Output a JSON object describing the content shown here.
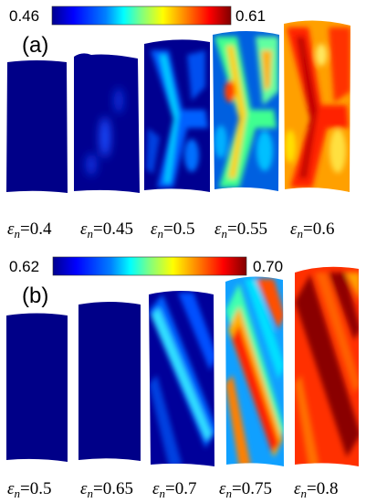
{
  "panels": [
    {
      "label": "(a)",
      "colorbar": {
        "min_label": "0.46",
        "max_label": "0.61",
        "colors": [
          "#00008f",
          "#0000ff",
          "#0080ff",
          "#00ffff",
          "#80ff80",
          "#ffff00",
          "#ff8000",
          "#ff0000",
          "#800000"
        ]
      },
      "strain_symbol": "ε",
      "strain_subscript": "n",
      "samples": [
        {
          "value": "=0.4",
          "state": 0.0
        },
        {
          "value": "=0.45",
          "state": 0.12
        },
        {
          "value": "=0.5",
          "state": 0.3
        },
        {
          "value": "=0.55",
          "state": 0.55
        },
        {
          "value": "=0.6",
          "state": 0.8
        }
      ]
    },
    {
      "label": "(b)",
      "colorbar": {
        "min_label": "0.62",
        "max_label": "0.70",
        "colors": [
          "#00008f",
          "#0000ff",
          "#0080ff",
          "#00ffff",
          "#80ff80",
          "#ffff00",
          "#ff8000",
          "#ff0000",
          "#800000"
        ]
      },
      "strain_symbol": "ε",
      "strain_subscript": "n",
      "samples": [
        {
          "value": "=0.5",
          "state": 0.0
        },
        {
          "value": "=0.65",
          "state": 0.02
        },
        {
          "value": "=0.7",
          "state": 0.3
        },
        {
          "value": "=0.75",
          "state": 0.55
        },
        {
          "value": "=0.8",
          "state": 0.85
        }
      ]
    }
  ]
}
